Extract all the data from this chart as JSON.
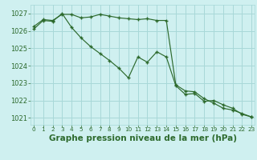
{
  "title": "Graphe pression niveau de la mer (hPa)",
  "background_color": "#cff0f0",
  "grid_color": "#a8d8d8",
  "line_color": "#2d6a2d",
  "hours": [
    0,
    1,
    2,
    3,
    4,
    5,
    6,
    7,
    8,
    9,
    10,
    11,
    12,
    13,
    14,
    15,
    16,
    17,
    18,
    19,
    20,
    21,
    22,
    23
  ],
  "series1": [
    1026.25,
    1026.65,
    1026.6,
    1026.95,
    1026.95,
    1026.75,
    1026.8,
    1026.95,
    1026.85,
    1026.75,
    1026.7,
    1026.65,
    1026.7,
    1026.6,
    1026.6,
    1022.9,
    1022.55,
    1022.5,
    1022.1,
    1021.85,
    1021.55,
    1021.45,
    1021.25,
    1021.05
  ],
  "series2": [
    1026.1,
    1026.6,
    1026.55,
    1027.0,
    1026.2,
    1025.6,
    1025.1,
    1024.7,
    1024.3,
    1023.85,
    1023.3,
    1024.5,
    1024.2,
    1024.8,
    1024.5,
    1022.85,
    1022.35,
    1022.4,
    1021.95,
    1022.0,
    1021.75,
    1021.55,
    1021.2,
    1021.05
  ],
  "ylim": [
    1020.6,
    1027.5
  ],
  "yticks": [
    1021,
    1022,
    1023,
    1024,
    1025,
    1026,
    1027
  ],
  "figsize": [
    3.2,
    2.0
  ],
  "dpi": 100
}
